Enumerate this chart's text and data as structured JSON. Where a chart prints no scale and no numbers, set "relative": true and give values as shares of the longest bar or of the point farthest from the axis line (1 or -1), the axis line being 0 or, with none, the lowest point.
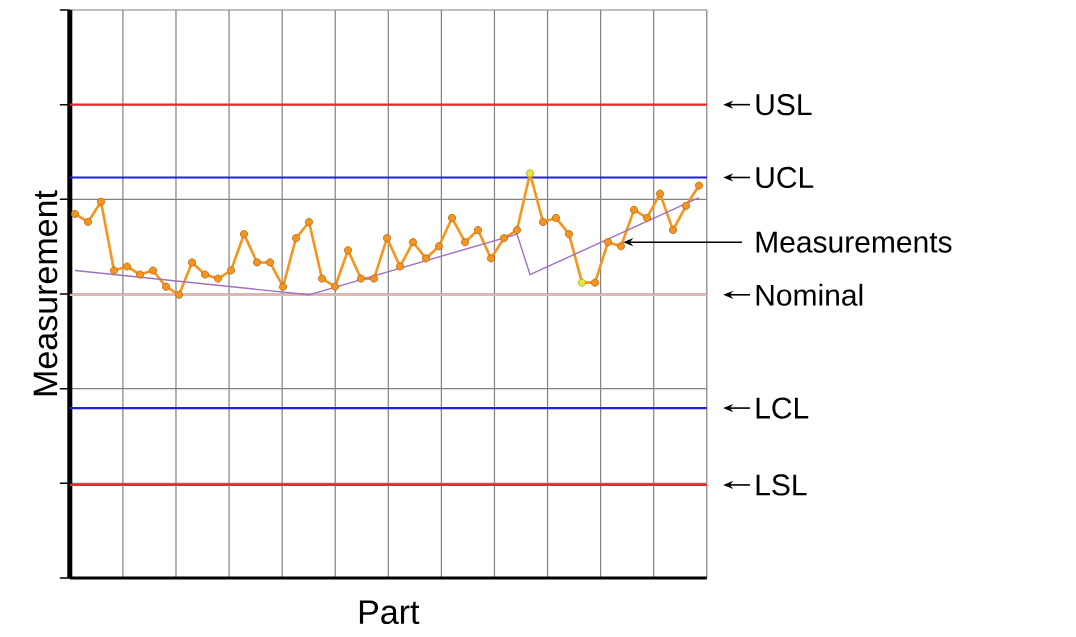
{
  "chart_data": {
    "type": "line",
    "relative": true,
    "xlabel": "Part",
    "ylabel": "Measurement",
    "grid": true,
    "categories": [
      null,
      null,
      null,
      null,
      null,
      null,
      null,
      null,
      null,
      null,
      null,
      null,
      null,
      null,
      null,
      null,
      null,
      null,
      null,
      null,
      null,
      null,
      null,
      null,
      null,
      null,
      null,
      null,
      null,
      null,
      null,
      null,
      null,
      null,
      null,
      null,
      null,
      null,
      null,
      null,
      null,
      null,
      null,
      null,
      null,
      null,
      null,
      null,
      null
    ],
    "series": [
      {
        "name": "Measurements",
        "color": "#f7941d",
        "marker": "circle",
        "colors": [
          "#f7941d",
          "#f7941d",
          "#f7941d",
          "#f7941d",
          "#f7941d",
          "#f7941d",
          "#f7941d",
          "#f7941d",
          "#f7941d",
          "#f7941d",
          "#f7941d",
          "#f7941d",
          "#f7941d",
          "#f7941d",
          "#f7941d",
          "#f7941d",
          "#f7941d",
          "#f7941d",
          "#f7941d",
          "#f7941d",
          "#f7941d",
          "#f7941d",
          "#f7941d",
          "#f7941d",
          "#f7941d",
          "#f7941d",
          "#f7941d",
          "#f7941d",
          "#f7941d",
          "#f7941d",
          "#f7941d",
          "#f7941d",
          "#f7941d",
          "#f7941d",
          "#f7941d",
          "#e8e83a",
          "#f7941d",
          "#f7941d",
          "#f7941d",
          "#e8e83a",
          "#f7941d",
          "#f7941d",
          "#f7941d",
          "#f7941d",
          "#f7941d",
          "#f7941d",
          "#f7941d",
          "#f7941d",
          "#f7941d"
        ],
        "values": [
          0.9,
          0.88,
          0.93,
          0.76,
          0.77,
          0.75,
          0.76,
          0.72,
          0.7,
          0.78,
          0.75,
          0.74,
          0.76,
          0.85,
          0.78,
          0.78,
          0.72,
          0.84,
          0.88,
          0.74,
          0.72,
          0.81,
          0.74,
          0.74,
          0.84,
          0.77,
          0.83,
          0.79,
          0.82,
          0.89,
          0.83,
          0.86,
          0.79,
          0.84,
          0.86,
          1.0,
          0.88,
          0.89,
          0.85,
          0.73,
          0.73,
          0.83,
          0.82,
          0.91,
          0.89,
          0.95,
          0.86,
          0.92,
          0.97
        ]
      },
      {
        "color": "#a070c0",
        "marker": "none",
        "values": [
          0.76,
          null,
          null,
          null,
          null,
          null,
          null,
          null,
          null,
          null,
          null,
          null,
          null,
          null,
          null,
          null,
          null,
          null,
          0.7,
          null,
          null,
          null,
          null,
          null,
          null,
          null,
          null,
          null,
          null,
          null,
          null,
          null,
          null,
          null,
          0.85,
          0.75,
          null,
          null,
          null,
          null,
          null,
          null,
          null,
          null,
          null,
          null,
          null,
          null,
          0.94
        ]
      }
    ],
    "ref_lines": [
      {
        "axis": "y",
        "value": 1.17,
        "label": "USL",
        "color": "#e8282a"
      },
      {
        "axis": "y",
        "value": 0.99,
        "label": "UCL",
        "color": "#2020e0"
      },
      {
        "axis": "y",
        "value": 0.7,
        "label": "Nominal",
        "color": "#e0b8b0"
      },
      {
        "axis": "y",
        "value": 0.42,
        "label": "LCL",
        "color": "#2020e0"
      },
      {
        "axis": "y",
        "value": 0.23,
        "label": "LSL",
        "color": "#e8282a"
      }
    ]
  }
}
